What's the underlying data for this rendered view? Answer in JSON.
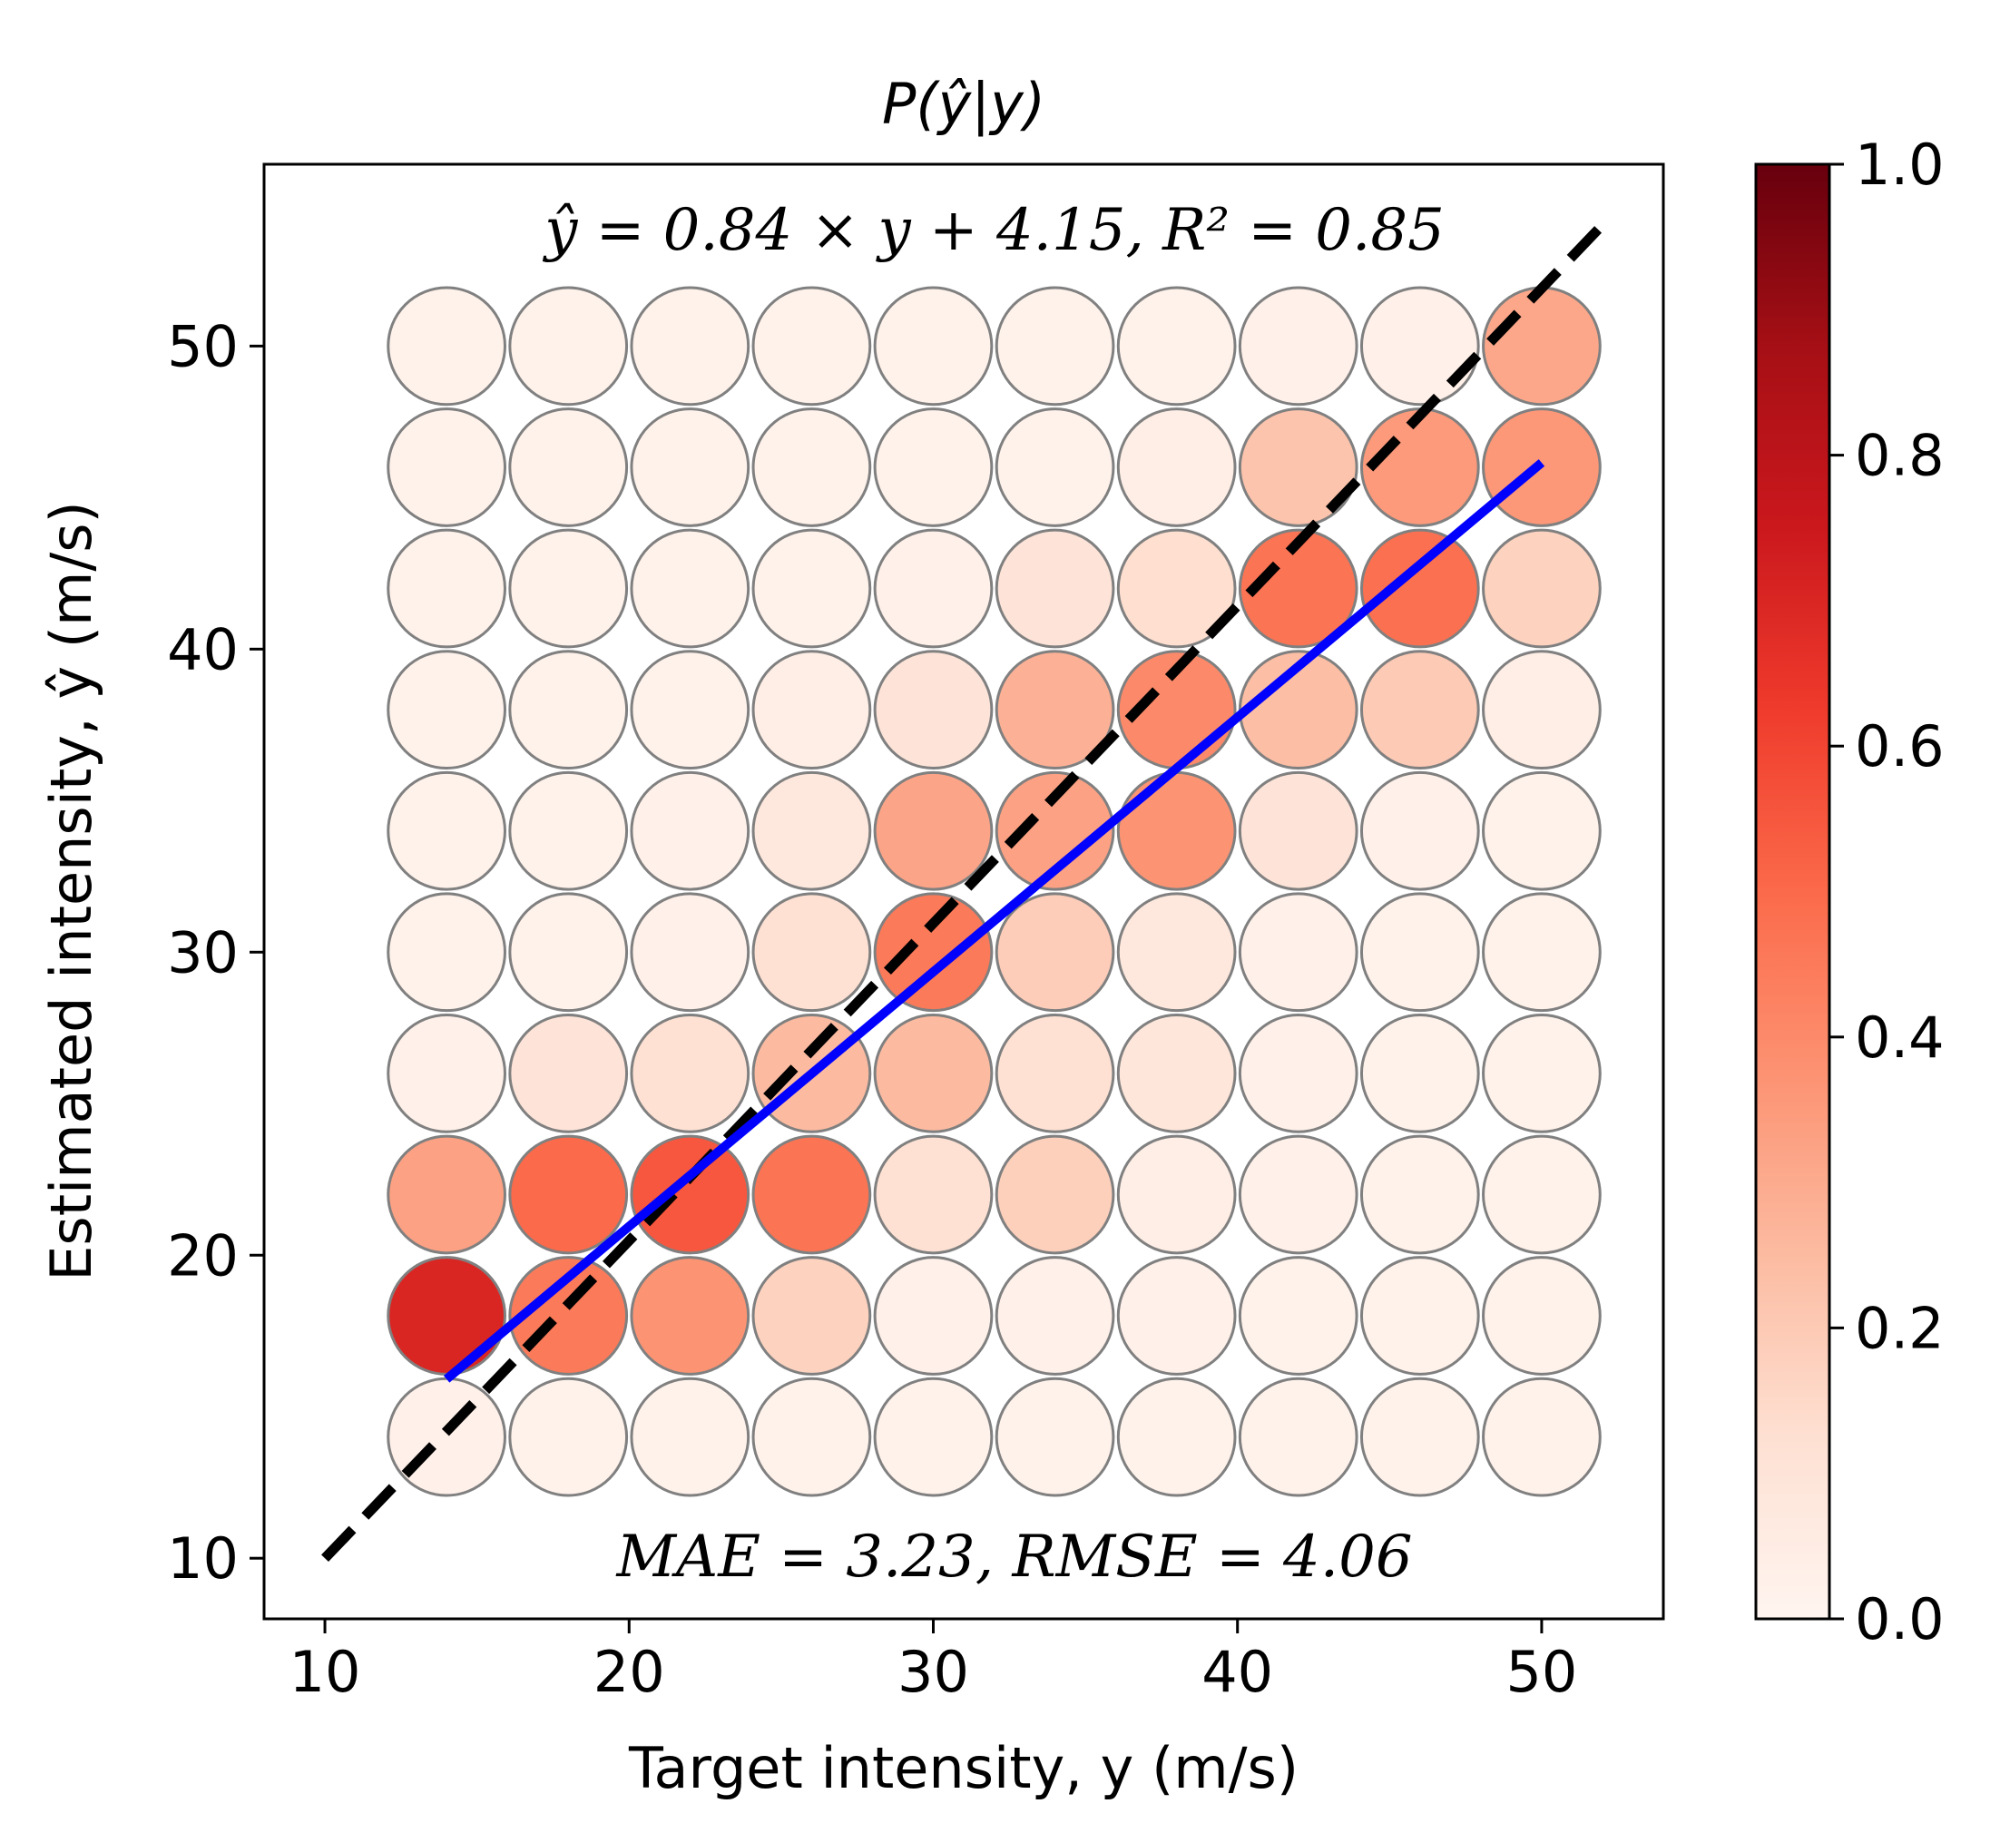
{
  "chart_data": {
    "type": "heatmap",
    "title": "P(ŷ|y)",
    "xlabel": "Target intensity, y (m/s)",
    "ylabel": "Estimated intensity, ŷ (m/s)",
    "xlim": [
      8,
      54
    ],
    "ylim": [
      8,
      56
    ],
    "xticks": [
      10,
      20,
      30,
      40,
      50
    ],
    "yticks": [
      10,
      20,
      30,
      40,
      50
    ],
    "x_centers": [
      14,
      18,
      22,
      26,
      30,
      34,
      38,
      42,
      46,
      50
    ],
    "y_centers": [
      14,
      18,
      22,
      26,
      30,
      34,
      38,
      42,
      46,
      50
    ],
    "probabilities_rows_by_y_center_desc": [
      [
        0.02,
        0.02,
        0.02,
        0.02,
        0.02,
        0.02,
        0.02,
        0.03,
        0.03,
        0.31
      ],
      [
        0.02,
        0.02,
        0.02,
        0.02,
        0.02,
        0.02,
        0.04,
        0.22,
        0.35,
        0.36
      ],
      [
        0.02,
        0.02,
        0.02,
        0.02,
        0.03,
        0.1,
        0.13,
        0.47,
        0.48,
        0.17
      ],
      [
        0.02,
        0.02,
        0.02,
        0.04,
        0.1,
        0.28,
        0.4,
        0.24,
        0.2,
        0.04
      ],
      [
        0.02,
        0.02,
        0.03,
        0.08,
        0.32,
        0.33,
        0.37,
        0.1,
        0.03,
        0.02
      ],
      [
        0.02,
        0.02,
        0.03,
        0.12,
        0.45,
        0.19,
        0.08,
        0.03,
        0.02,
        0.02
      ],
      [
        0.03,
        0.1,
        0.12,
        0.25,
        0.25,
        0.12,
        0.09,
        0.03,
        0.02,
        0.02
      ],
      [
        0.33,
        0.5,
        0.55,
        0.47,
        0.12,
        0.18,
        0.04,
        0.03,
        0.02,
        0.02
      ],
      [
        0.7,
        0.45,
        0.37,
        0.17,
        0.03,
        0.03,
        0.03,
        0.02,
        0.02,
        0.02
      ],
      [
        0.03,
        0.02,
        0.02,
        0.02,
        0.02,
        0.02,
        0.02,
        0.02,
        0.02,
        0.02
      ]
    ],
    "identity_line": {
      "x": [
        10,
        52
      ],
      "y": [
        10,
        54
      ]
    },
    "fit_line": {
      "slope": 0.84,
      "intercept": 4.15,
      "x": [
        14,
        50
      ]
    },
    "annotations": {
      "fit": "ŷ = 0.84 × y + 4.15, R² = 0.85",
      "errors": "MAE = 3.23, RMSE = 4.06"
    },
    "colorbar": {
      "colormap": "Reds",
      "range": [
        0.0,
        1.0
      ],
      "ticks": [
        "0.0",
        "0.2",
        "0.4",
        "0.6",
        "0.8",
        "1.0"
      ]
    },
    "colors": {
      "identity_line": "#000000",
      "fit_line": "#0000ff",
      "circle_edge": "#808080"
    }
  }
}
